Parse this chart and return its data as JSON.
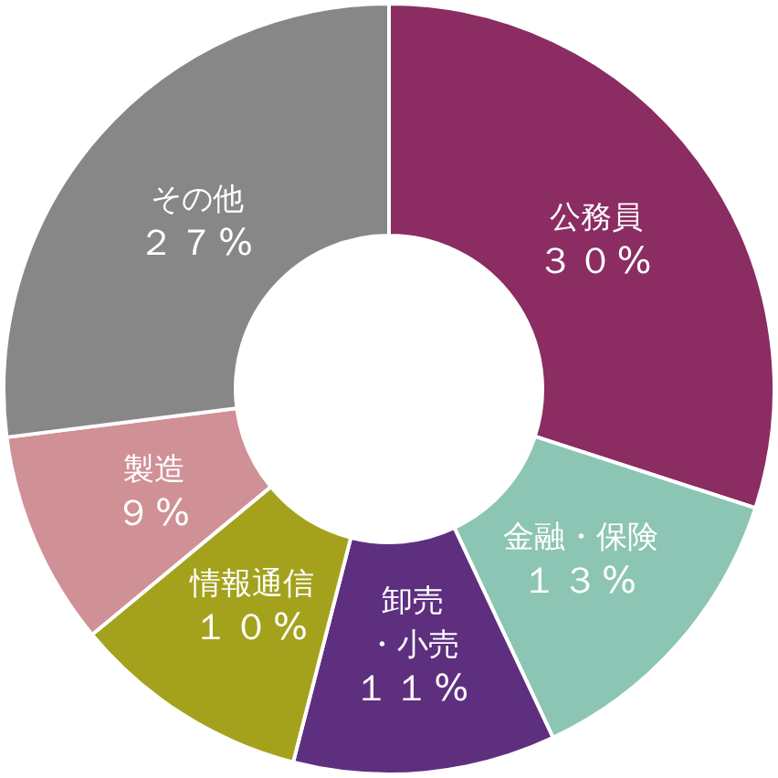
{
  "chart_data": {
    "type": "donut",
    "categories": [
      "公務員",
      "金融・保険",
      "卸売・小売",
      "情報通信",
      "製造",
      "その他"
    ],
    "values": [
      30,
      13,
      11,
      10,
      9,
      27
    ],
    "colors": [
      "#8b2c62",
      "#8cc5b4",
      "#5e2f7f",
      "#a4a21c",
      "#cf9096",
      "#878787"
    ],
    "value_labels": [
      "３０%",
      "１３%",
      "１１%",
      "１０%",
      "９%",
      "２７%"
    ]
  }
}
